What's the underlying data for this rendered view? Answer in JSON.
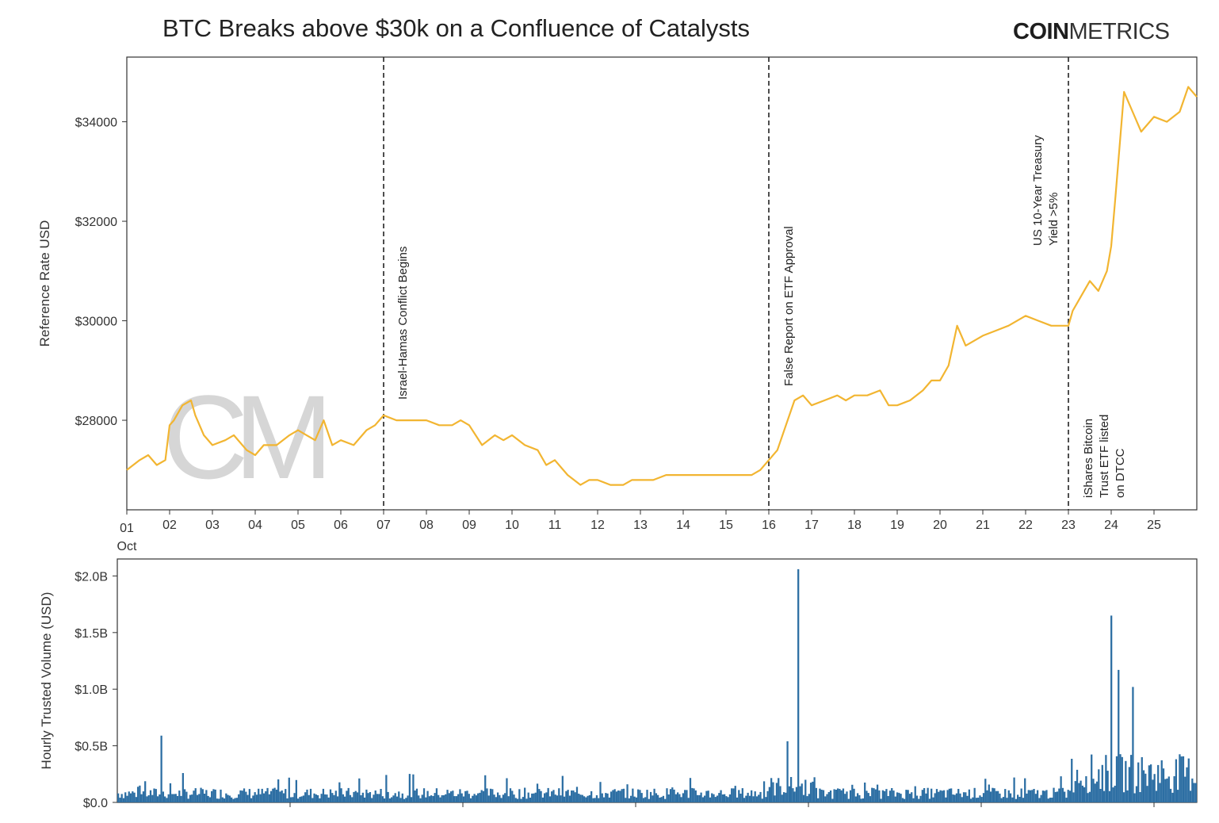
{
  "title": "BTC Breaks above $30k on a Confluence of Catalysts",
  "logo": {
    "bold": "COIN",
    "light": "METRICS"
  },
  "watermark": "CM",
  "colors": {
    "price": "#f2b531",
    "volume": "#2c6ea3",
    "watermark": "#cfcfcf",
    "axis": "#333333"
  },
  "chart_data": [
    {
      "type": "line",
      "ylabel": "Reference Rate USD",
      "xlabel": "",
      "x_month_label": "Oct",
      "x_ticks": [
        "01",
        "02",
        "03",
        "04",
        "05",
        "06",
        "07",
        "08",
        "09",
        "10",
        "11",
        "12",
        "13",
        "14",
        "15",
        "16",
        "17",
        "18",
        "19",
        "20",
        "21",
        "22",
        "23",
        "24",
        "25"
      ],
      "y_ticks": [
        "$28000",
        "$30000",
        "$32000",
        "$34000"
      ],
      "y_tick_values": [
        28000,
        30000,
        32000,
        34000
      ],
      "ylim": [
        26200,
        35300
      ],
      "xlim": [
        1,
        26
      ],
      "grid": false,
      "series": [
        {
          "x": [
            1.0,
            1.3,
            1.5,
            1.7,
            1.9,
            2.0,
            2.1,
            2.3,
            2.5,
            2.6,
            2.8,
            3.0,
            3.3,
            3.5,
            3.8,
            4.0,
            4.2,
            4.5,
            4.8,
            5.0,
            5.2,
            5.4,
            5.6,
            5.8,
            6.0,
            6.3,
            6.6,
            6.8,
            7.0,
            7.3,
            7.6,
            7.8,
            8.0,
            8.3,
            8.6,
            8.8,
            9.0,
            9.3,
            9.6,
            9.8,
            10.0,
            10.3,
            10.6,
            10.8,
            11.0,
            11.3,
            11.6,
            11.8,
            12.0,
            12.3,
            12.6,
            12.8,
            13.0,
            13.3,
            13.6,
            13.8,
            14.0,
            14.3,
            14.6,
            14.8,
            15.0,
            15.3,
            15.6,
            15.8,
            16.0,
            16.2,
            16.4,
            16.6,
            16.8,
            17.0,
            17.3,
            17.6,
            17.8,
            18.0,
            18.3,
            18.6,
            18.8,
            19.0,
            19.3,
            19.6,
            19.8,
            20.0,
            20.2,
            20.4,
            20.6,
            20.8,
            21.0,
            21.3,
            21.6,
            21.8,
            22.0,
            22.3,
            22.6,
            22.8,
            23.0,
            23.1,
            23.3,
            23.5,
            23.7,
            23.9,
            24.0,
            24.1,
            24.3,
            24.5,
            24.7,
            24.9,
            25.0,
            25.3,
            25.6,
            25.8,
            26.0
          ],
          "y": [
            27000,
            27200,
            27300,
            27100,
            27200,
            27900,
            28000,
            28300,
            28400,
            28100,
            27700,
            27500,
            27600,
            27700,
            27400,
            27300,
            27500,
            27500,
            27700,
            27800,
            27700,
            27600,
            28000,
            27500,
            27600,
            27500,
            27800,
            27900,
            28100,
            28000,
            28000,
            28000,
            28000,
            27900,
            27900,
            28000,
            27900,
            27500,
            27700,
            27600,
            27700,
            27500,
            27400,
            27100,
            27200,
            26900,
            26700,
            26800,
            26800,
            26700,
            26700,
            26800,
            26800,
            26800,
            26900,
            26900,
            26900,
            26900,
            26900,
            26900,
            26900,
            26900,
            26900,
            27000,
            27200,
            27400,
            27900,
            28400,
            28500,
            28300,
            28400,
            28500,
            28400,
            28500,
            28500,
            28600,
            28300,
            28300,
            28400,
            28600,
            28800,
            28800,
            29100,
            29900,
            29500,
            29600,
            29700,
            29800,
            29900,
            30000,
            30100,
            30000,
            29900,
            29900,
            29900,
            30200,
            30500,
            30800,
            30600,
            31000,
            31500,
            32500,
            34600,
            34200,
            33800,
            34000,
            34100,
            34000,
            34200,
            34700,
            34500
          ]
        }
      ],
      "annotations": [
        {
          "x": 7,
          "lines": [
            "Israel-Hamas Conflict Begins"
          ]
        },
        {
          "x": 16,
          "lines": [
            "False Report on ETF Approval"
          ]
        },
        {
          "x": 23,
          "lines": [
            "US 10-Year Treasury",
            "Yield >5%"
          ]
        },
        {
          "x": 23,
          "lines": [
            "iShares Bitcoin",
            "Trust ETF listed",
            "on DTCC"
          ]
        }
      ]
    },
    {
      "type": "bar",
      "ylabel": "Hourly Trusted Volume (USD)",
      "xlabel": "",
      "y_ticks": [
        "$0.0",
        "$0.5B",
        "$1.0B",
        "$1.5B",
        "$2.0B"
      ],
      "y_tick_values": [
        0,
        0.5,
        1.0,
        1.5,
        2.0
      ],
      "ylim": [
        0,
        2.15
      ],
      "units": "billions USD",
      "note": "hourly bars, 25 days",
      "spikes": [
        {
          "hour": 24,
          "value": 0.59
        },
        {
          "hour": 372,
          "value": 0.54
        },
        {
          "hour": 378,
          "value": 2.06
        },
        {
          "hour": 552,
          "value": 1.65
        },
        {
          "hour": 556,
          "value": 1.17
        },
        {
          "hour": 564,
          "value": 1.02
        }
      ]
    }
  ]
}
